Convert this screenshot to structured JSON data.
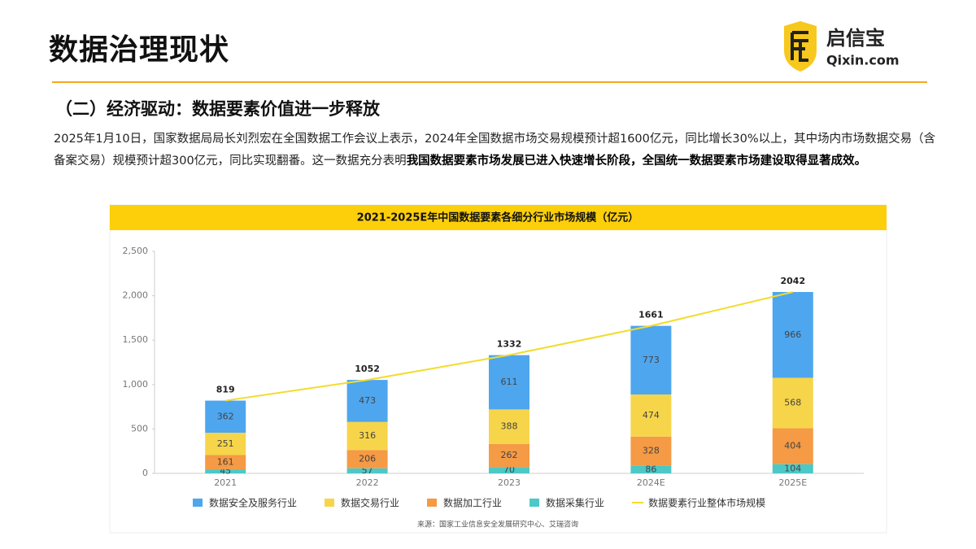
{
  "header": {
    "title": "数据治理现状",
    "subtitle": "（二）经济驱动：数据要素价值进一步释放"
  },
  "logo": {
    "name": "启信宝",
    "domain": "Qixin.com"
  },
  "paragraph": {
    "text": "2025年1月10日，国家数据局局长刘烈宏在全国数据工作会议上表示，2024年全国数据市场交易规模预计超1600亿元，同比增长30%以上，其中场内市场数据交易（含备案交易）规模预计超300亿元，同比实现翻番。这一数据充分表明",
    "bold": "我国数据要素市场发展已进入快速增长阶段，全国统一数据要素市场建设取得显著成效。"
  },
  "chart_data": {
    "type": "bar",
    "stacked": true,
    "title": "2021-2025E年中国数据要素各细分行业市场规模（亿元）",
    "categories": [
      "2021",
      "2022",
      "2023",
      "2024E",
      "2025E"
    ],
    "series": [
      {
        "name": "数据安全及服务行业",
        "color": "#4ea6ee",
        "values": [
          362,
          473,
          611,
          773,
          966
        ]
      },
      {
        "name": "数据交易行业",
        "color": "#f7d54a",
        "values": [
          251,
          316,
          388,
          474,
          568
        ]
      },
      {
        "name": "数据加工行业",
        "color": "#f59a45",
        "values": [
          161,
          206,
          262,
          328,
          404
        ]
      },
      {
        "name": "数据采集行业",
        "color": "#4cc8c6",
        "values": [
          45,
          57,
          70,
          86,
          104
        ]
      },
      {
        "name": "数据要素行业整体市场规模",
        "color": "#f2dc2c",
        "type": "line",
        "values": [
          819,
          1052,
          1332,
          1661,
          2042
        ]
      }
    ],
    "ylim": [
      0,
      2500
    ],
    "yticks": [
      0,
      500,
      {
        "value": 1000,
        "label": "1,000"
      },
      {
        "value": 1500,
        "label": "1,500"
      },
      {
        "value": 2000,
        "label": "2,000"
      },
      {
        "value": 2500,
        "label": "2,500"
      }
    ],
    "source": "来源：国家工业信息安全发展研究中心、艾瑞咨询"
  }
}
